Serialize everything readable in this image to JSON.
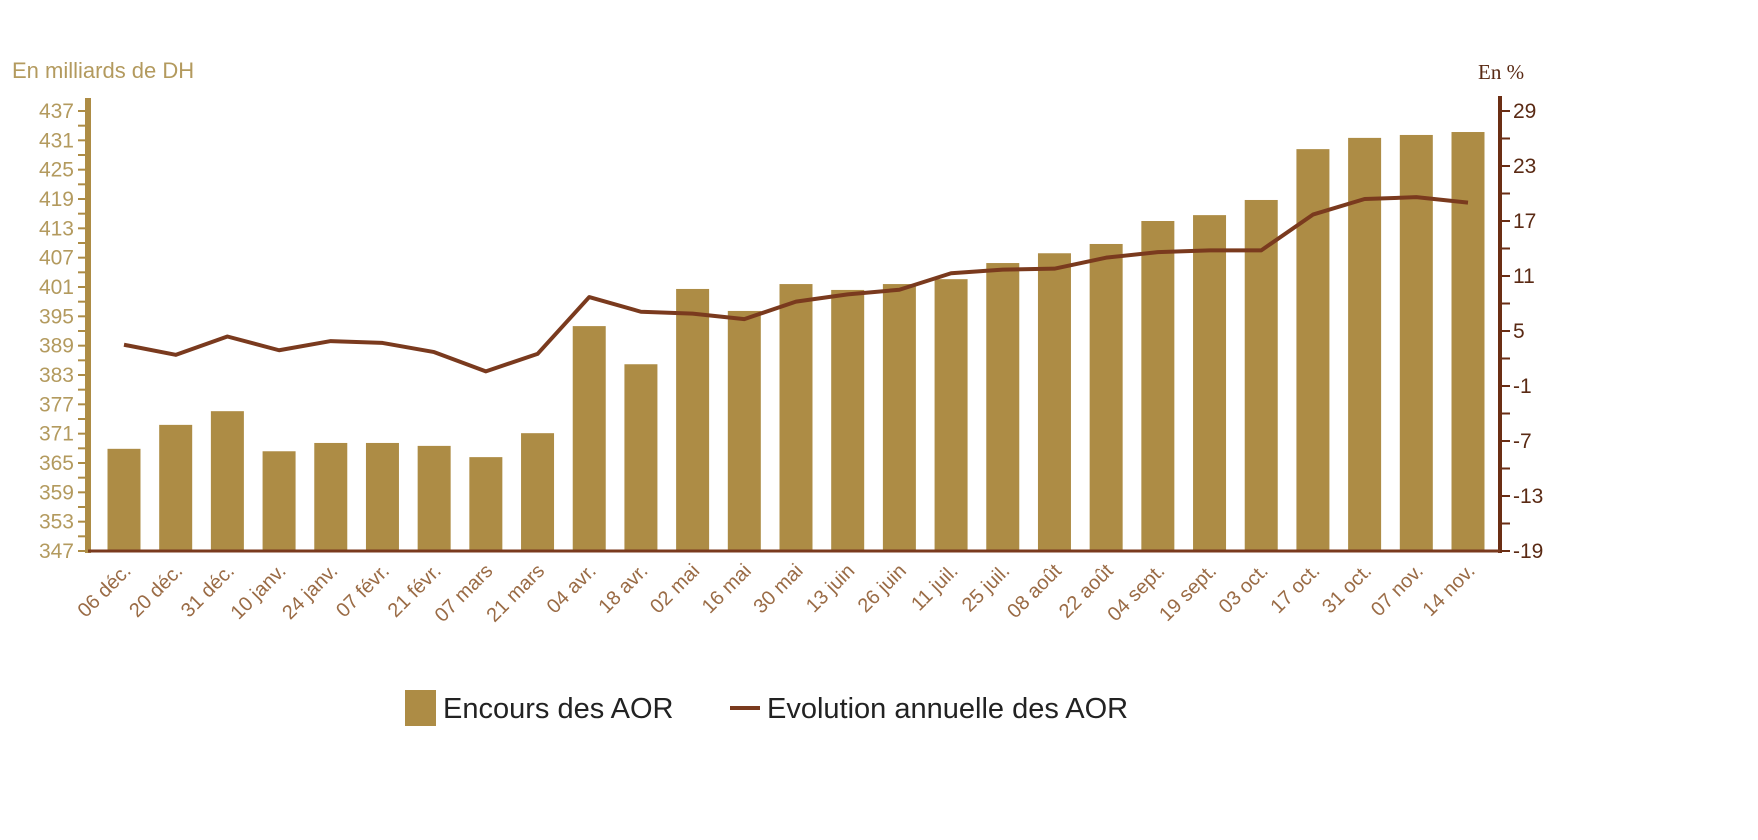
{
  "chart_data": {
    "type": "bar+line",
    "left_axis_label": "En milliards de DH",
    "right_axis_label": "En %",
    "categories": [
      "06 déc.",
      "20 déc.",
      "31 déc.",
      "10 janv.",
      "24 janv.",
      "07 févr.",
      "21 févr.",
      "07 mars",
      "21 mars",
      "04 avr.",
      "18 avr.",
      "02 mai",
      "16 mai",
      "30 mai",
      "13 juin",
      "26 juin",
      "11 juil.",
      "25 juil.",
      "08 août",
      "22 août",
      "04 sept.",
      "19 sept.",
      "03 oct.",
      "17 oct.",
      "31 oct.",
      "07 nov.",
      "14 nov."
    ],
    "series": [
      {
        "name": "Encours des AOR",
        "type": "bar",
        "axis": "left",
        "color": "#ad8c45",
        "values": [
          367.9,
          372.8,
          375.6,
          367.4,
          369.1,
          369.1,
          368.5,
          366.2,
          371.1,
          393.0,
          385.2,
          400.6,
          396.1,
          401.6,
          400.4,
          401.6,
          402.6,
          405.9,
          407.9,
          409.8,
          414.5,
          415.7,
          418.8,
          429.2,
          431.5,
          432.1,
          432.7
        ]
      },
      {
        "name": "Evolution annuelle des AOR",
        "type": "line",
        "axis": "right",
        "color": "#7a3a1e",
        "values": [
          3.5,
          2.4,
          4.4,
          2.9,
          3.9,
          3.7,
          2.7,
          0.6,
          2.5,
          8.7,
          7.1,
          6.9,
          6.3,
          8.2,
          9.0,
          9.5,
          11.3,
          11.7,
          11.8,
          13.0,
          13.6,
          13.8,
          13.8,
          17.7,
          19.4,
          19.6,
          19.0
        ]
      }
    ],
    "left_axis": {
      "min": 347,
      "max": 437,
      "ticks": [
        "437",
        "431",
        "425",
        "419",
        "413",
        "407",
        "401",
        "395",
        "389",
        "383",
        "377",
        "371",
        "365",
        "359",
        "353",
        "347"
      ]
    },
    "right_axis": {
      "min": -19,
      "max": 29,
      "ticks": [
        "29",
        "23",
        "17",
        "11",
        "5",
        "-1",
        "-7",
        "-13",
        "-19"
      ]
    },
    "legend": {
      "position": "bottom",
      "items": [
        "Encours des AOR",
        "Evolution annuelle des AOR"
      ]
    }
  }
}
